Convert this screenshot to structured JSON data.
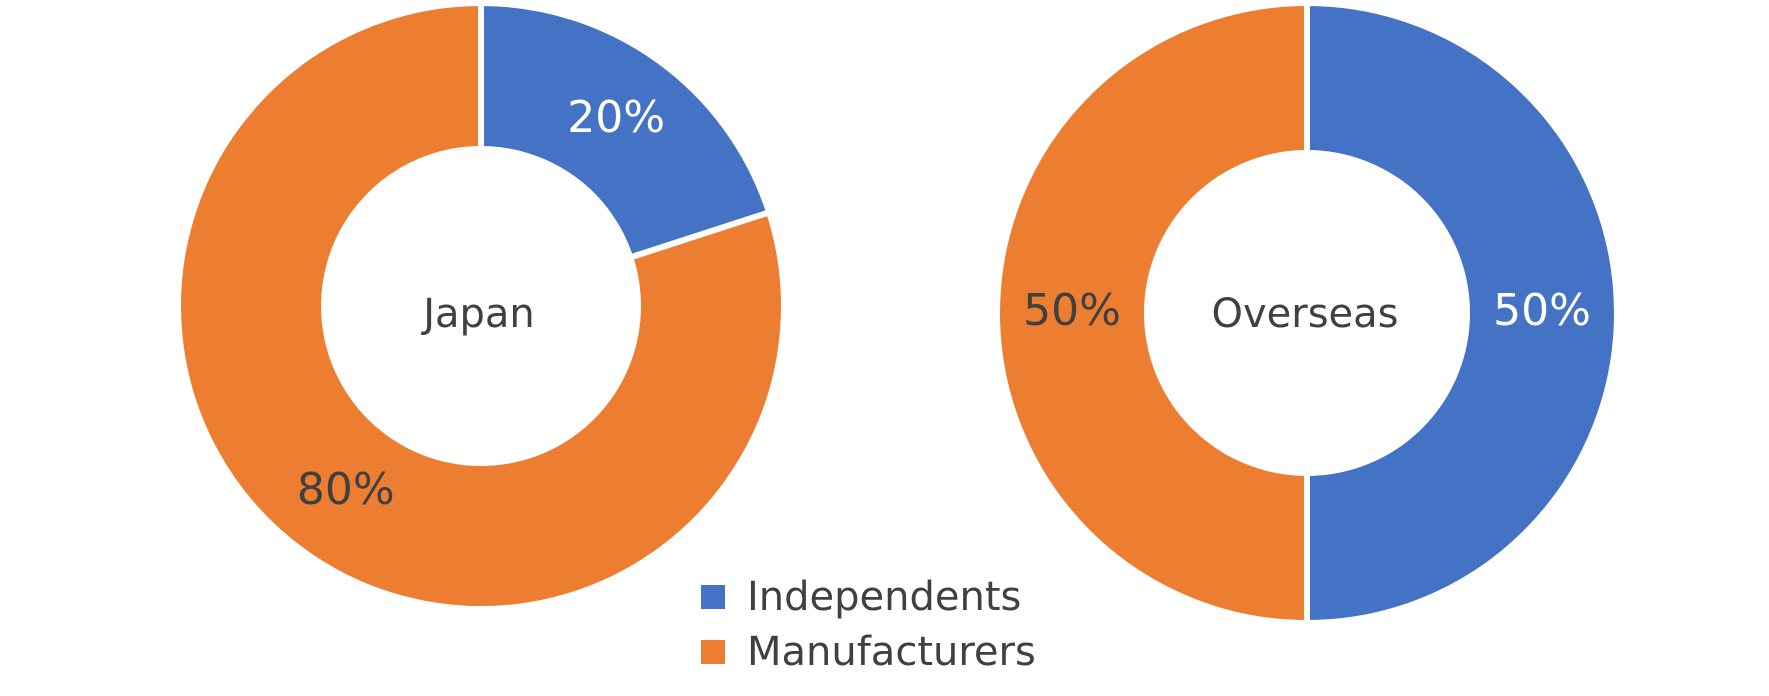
{
  "chart_data": [
    {
      "type": "pie",
      "title": "Japan",
      "categories": [
        "Independents",
        "Manufacturers"
      ],
      "values": [
        20,
        80
      ],
      "value_labels": [
        "20%",
        "80%"
      ],
      "colors": [
        "#4472c4",
        "#ed7d31"
      ],
      "label_colors": [
        "#ffffff",
        "#404040"
      ]
    },
    {
      "type": "pie",
      "title": "Overseas",
      "categories": [
        "Independents",
        "Manufacturers"
      ],
      "values": [
        50,
        50
      ],
      "value_labels": [
        "50%",
        "50%"
      ],
      "colors": [
        "#4472c4",
        "#ed7d31"
      ],
      "label_colors": [
        "#ffffff",
        "#404040"
      ]
    }
  ]
}
